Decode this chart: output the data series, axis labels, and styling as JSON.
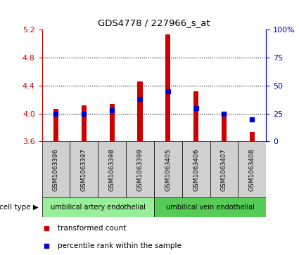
{
  "title": "GDS4778 / 227966_s_at",
  "samples": [
    "GSM1063396",
    "GSM1063397",
    "GSM1063398",
    "GSM1063399",
    "GSM1063405",
    "GSM1063406",
    "GSM1063407",
    "GSM1063408"
  ],
  "transformed_count": [
    4.07,
    4.12,
    4.14,
    4.46,
    5.13,
    4.32,
    4.0,
    3.73
  ],
  "percentile_rank": [
    25,
    25,
    28,
    38,
    45,
    30,
    25,
    20
  ],
  "ymin": 3.6,
  "ymax": 5.2,
  "yticks": [
    3.6,
    4.0,
    4.4,
    4.8,
    5.2
  ],
  "right_yticks": [
    0,
    25,
    50,
    75,
    100
  ],
  "bar_color": "#cc0000",
  "dot_color": "#0000cc",
  "cell_type_groups": [
    {
      "label": "umbilical artery endothelial",
      "count": 4,
      "color": "#99ee99"
    },
    {
      "label": "umbilical vein endothelial",
      "count": 4,
      "color": "#55cc55"
    }
  ],
  "cell_type_label": "cell type",
  "legend_items": [
    {
      "label": "transformed count",
      "color": "#cc0000"
    },
    {
      "label": "percentile rank within the sample",
      "color": "#0000cc"
    }
  ],
  "left_axis_color": "#cc0000",
  "right_axis_color": "#0000cc",
  "sample_box_color": "#d0d0d0",
  "bar_width": 0.18
}
